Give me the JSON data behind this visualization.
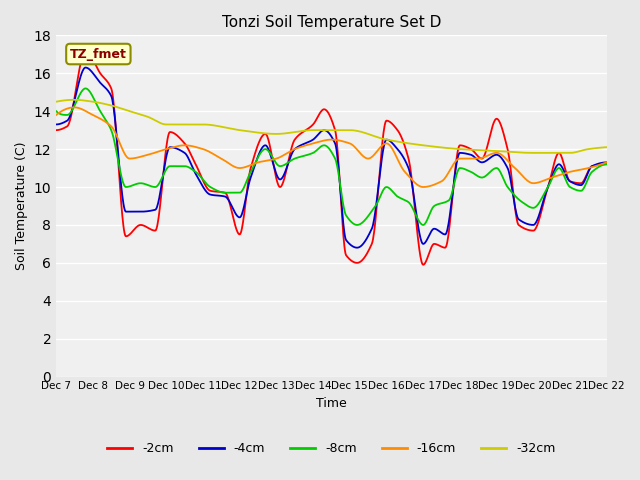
{
  "title": "Tonzi Soil Temperature Set D",
  "xlabel": "Time",
  "ylabel": "Soil Temperature (C)",
  "ylim": [
    0,
    18
  ],
  "yticks": [
    0,
    2,
    4,
    6,
    8,
    10,
    12,
    14,
    16,
    18
  ],
  "annotation_text": "TZ_fmet",
  "annotation_color": "#8B0000",
  "annotation_bg": "#FFFFCC",
  "annotation_border": "#8B8B00",
  "series_colors": [
    "#FF0000",
    "#0000CD",
    "#00CC00",
    "#FF8C00",
    "#CCCC00"
  ],
  "series_labels": [
    "-2cm",
    "-4cm",
    "-8cm",
    "-16cm",
    "-32cm"
  ],
  "xtick_labels": [
    "Dec 7",
    "Dec 8",
    "Dec 9",
    "Dec 10",
    "Dec 11",
    "Dec 12",
    "Dec 13",
    "Dec 14",
    "Dec 15",
    "Dec 16",
    "Dec 17",
    "Dec 18",
    "Dec 19",
    "Dec 20",
    "Dec 21",
    "Dec 22"
  ],
  "background_color": "#E8E8E8",
  "plot_bg": "#F0F0F0",
  "grid_color": "#FFFFFF",
  "figsize": [
    6.4,
    4.8
  ],
  "dpi": 100,
  "red_keypoints_x": [
    0.0,
    0.3,
    0.8,
    1.2,
    1.5,
    1.9,
    2.3,
    2.7,
    3.1,
    3.5,
    3.8,
    4.2,
    4.6,
    5.0,
    5.3,
    5.7,
    6.1,
    6.5,
    7.0,
    7.3,
    7.6,
    7.9,
    8.2,
    8.6,
    9.0,
    9.3,
    9.6,
    10.0,
    10.3,
    10.6,
    11.0,
    11.3,
    11.6,
    12.0,
    12.3,
    12.6,
    13.0,
    13.4,
    13.7,
    14.0,
    14.3,
    14.6,
    15.0
  ],
  "red_keypoints_y": [
    13.0,
    13.2,
    17.2,
    16.0,
    15.2,
    7.4,
    8.0,
    7.7,
    12.9,
    12.3,
    11.2,
    9.8,
    9.7,
    7.5,
    11.0,
    12.8,
    10.0,
    12.5,
    13.3,
    14.1,
    13.0,
    6.4,
    6.0,
    7.0,
    13.5,
    13.0,
    11.5,
    5.9,
    7.0,
    6.8,
    12.2,
    12.0,
    11.5,
    13.6,
    12.0,
    8.0,
    7.7,
    10.0,
    11.8,
    10.3,
    10.2,
    11.1,
    11.2
  ],
  "blue_keypoints_x": [
    0.0,
    0.3,
    0.8,
    1.2,
    1.5,
    1.9,
    2.3,
    2.7,
    3.1,
    3.5,
    3.8,
    4.2,
    4.6,
    5.0,
    5.3,
    5.7,
    6.1,
    6.5,
    7.0,
    7.3,
    7.6,
    7.9,
    8.2,
    8.6,
    9.0,
    9.3,
    9.6,
    10.0,
    10.3,
    10.6,
    11.0,
    11.3,
    11.6,
    12.0,
    12.3,
    12.6,
    13.0,
    13.4,
    13.7,
    14.0,
    14.3,
    14.6,
    15.0
  ],
  "blue_keypoints_y": [
    13.3,
    13.5,
    16.3,
    15.5,
    14.8,
    8.7,
    8.7,
    8.8,
    12.1,
    11.8,
    10.7,
    9.6,
    9.5,
    8.4,
    10.5,
    12.2,
    10.4,
    12.0,
    12.5,
    13.0,
    12.3,
    7.2,
    6.8,
    7.8,
    12.5,
    12.0,
    11.0,
    7.0,
    7.8,
    7.5,
    11.8,
    11.7,
    11.3,
    11.7,
    11.0,
    8.3,
    8.0,
    10.0,
    11.2,
    10.3,
    10.1,
    11.1,
    11.3
  ],
  "green_keypoints_x": [
    0.0,
    0.3,
    0.8,
    1.2,
    1.5,
    1.9,
    2.3,
    2.7,
    3.1,
    3.5,
    3.8,
    4.2,
    4.6,
    5.0,
    5.3,
    5.7,
    6.1,
    6.5,
    7.0,
    7.3,
    7.6,
    7.9,
    8.2,
    8.7,
    9.0,
    9.3,
    9.6,
    10.0,
    10.3,
    10.7,
    11.0,
    11.3,
    11.6,
    12.0,
    12.3,
    12.7,
    13.0,
    13.4,
    13.7,
    14.0,
    14.3,
    14.6,
    15.0
  ],
  "green_keypoints_y": [
    14.0,
    13.8,
    15.2,
    14.0,
    13.0,
    10.0,
    10.2,
    10.0,
    11.1,
    11.1,
    10.8,
    10.0,
    9.7,
    9.7,
    10.8,
    12.0,
    11.1,
    11.5,
    11.8,
    12.2,
    11.5,
    8.5,
    8.0,
    9.0,
    10.0,
    9.5,
    9.2,
    8.0,
    9.0,
    9.3,
    11.0,
    10.8,
    10.5,
    11.0,
    10.0,
    9.2,
    8.9,
    10.0,
    11.0,
    10.0,
    9.8,
    10.8,
    11.2
  ],
  "orange_keypoints_x": [
    0.0,
    0.5,
    1.0,
    1.5,
    2.0,
    2.5,
    3.0,
    3.5,
    4.0,
    4.5,
    5.0,
    5.5,
    6.0,
    6.5,
    7.0,
    7.5,
    8.0,
    8.5,
    9.0,
    9.5,
    10.0,
    10.5,
    11.0,
    11.5,
    12.0,
    12.5,
    13.0,
    13.5,
    14.0,
    14.5,
    15.0
  ],
  "orange_keypoints_y": [
    13.8,
    14.2,
    13.8,
    13.2,
    11.5,
    11.7,
    12.0,
    12.2,
    12.0,
    11.5,
    11.0,
    11.3,
    11.5,
    12.0,
    12.3,
    12.5,
    12.3,
    11.5,
    12.3,
    10.8,
    10.0,
    10.3,
    11.5,
    11.5,
    11.8,
    11.0,
    10.2,
    10.5,
    10.8,
    11.0,
    11.3
  ],
  "yellow_keypoints_x": [
    0.0,
    0.5,
    1.0,
    1.5,
    2.0,
    2.5,
    3.0,
    3.5,
    4.0,
    5.0,
    6.0,
    7.0,
    8.0,
    9.0,
    10.0,
    11.0,
    12.0,
    13.0,
    14.0,
    14.5,
    15.0
  ],
  "yellow_keypoints_y": [
    14.5,
    14.6,
    14.5,
    14.3,
    14.0,
    13.7,
    13.3,
    13.3,
    13.3,
    13.0,
    12.8,
    13.0,
    13.0,
    12.5,
    12.2,
    12.0,
    11.9,
    11.8,
    11.8,
    12.0,
    12.1
  ]
}
